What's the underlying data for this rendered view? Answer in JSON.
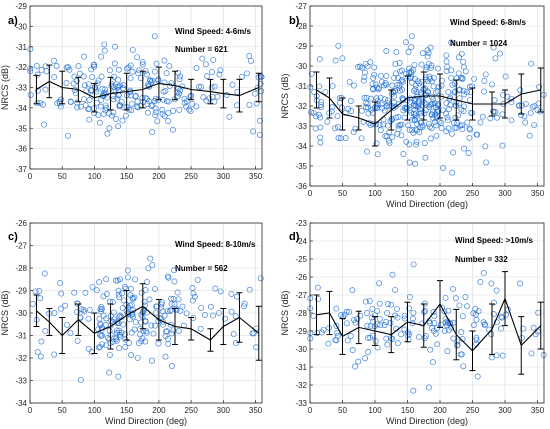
{
  "colors": {
    "marker": "#1f6fd6",
    "line": "#000000",
    "grid": "#dcdcdc",
    "frame": "#262626"
  },
  "chart_data": [
    {
      "type": "scatter",
      "panel_label": "a)",
      "annotation_speed": "Wind Speed: 4-6m/s",
      "annotation_number": "Number = 621",
      "xlabel": "",
      "ylabel": "NRCS (dB)",
      "xlim": [
        0,
        360
      ],
      "ylim": [
        -37,
        -29
      ],
      "xticks": [
        "0",
        "50",
        "100",
        "150",
        "200",
        "250",
        "300",
        "350"
      ],
      "yticks": [
        "-37",
        "-36",
        "-35",
        "-34",
        "-33",
        "-32",
        "-31",
        "-30",
        "-29"
      ],
      "grid": true,
      "mean_line": {
        "x": [
          10,
          30,
          50,
          75,
          100,
          125,
          150,
          175,
          200,
          225,
          250,
          280,
          300,
          325,
          355
        ],
        "y": [
          -33.1,
          -32.7,
          -33.0,
          -33.1,
          -33.5,
          -33.3,
          -33.2,
          -33.1,
          -32.8,
          -32.9,
          -33.1,
          -33.2,
          -33.3,
          -33.4,
          -33.0
        ],
        "err": [
          0.7,
          0.8,
          0.8,
          0.6,
          0.7,
          0.8,
          0.9,
          0.9,
          0.8,
          0.7,
          0.5,
          0.6,
          0.7,
          0.8,
          0.7
        ]
      },
      "scatter": {
        "center": 155,
        "spread": 70,
        "mean": -33.1,
        "sd": 0.9,
        "n": 260,
        "seed": 11
      }
    },
    {
      "type": "scatter",
      "panel_label": "b)",
      "annotation_speed": "Wind Speed: 6-8m/s",
      "annotation_number": "Number = 1024",
      "xlabel": "Wind Direction (deg)",
      "ylabel": "NRCS (dB)",
      "xlim": [
        0,
        360
      ],
      "ylim": [
        -36,
        -27
      ],
      "xticks": [
        "0",
        "50",
        "100",
        "150",
        "200",
        "250",
        "300",
        "350"
      ],
      "yticks": [
        "-36",
        "-35",
        "-34",
        "-33",
        "-32",
        "-31",
        "-30",
        "-29",
        "-28",
        "-27"
      ],
      "grid": true,
      "mean_line": {
        "x": [
          10,
          30,
          50,
          75,
          100,
          125,
          150,
          175,
          200,
          225,
          250,
          280,
          300,
          325,
          355
        ],
        "y": [
          -31.2,
          -31.6,
          -32.4,
          -32.6,
          -32.9,
          -32.2,
          -31.6,
          -31.5,
          -31.5,
          -31.7,
          -31.9,
          -31.9,
          -31.9,
          -31.4,
          -31.2
        ],
        "err": [
          0.9,
          1.0,
          0.8,
          0.6,
          1.1,
          1.0,
          1.1,
          1.2,
          1.1,
          1.0,
          0.8,
          0.6,
          0.7,
          1.0,
          1.1
        ]
      },
      "scatter": {
        "center": 165,
        "spread": 55,
        "mean": -31.8,
        "sd": 1.1,
        "n": 430,
        "seed": 22
      }
    },
    {
      "type": "scatter",
      "panel_label": "c)",
      "annotation_speed": "Wind Speed: 8-10m/s",
      "annotation_number": "Number = 562",
      "xlabel": "Wind Direction (deg)",
      "ylabel": "NRCS (dB)",
      "xlim": [
        0,
        360
      ],
      "ylim": [
        -34,
        -26
      ],
      "xticks": [
        "0",
        "50",
        "100",
        "150",
        "200",
        "250",
        "300",
        "350"
      ],
      "yticks": [
        "-34",
        "-33",
        "-32",
        "-31",
        "-30",
        "-29",
        "-28",
        "-27",
        "-26"
      ],
      "grid": true,
      "mean_line": {
        "x": [
          10,
          30,
          50,
          75,
          100,
          125,
          150,
          175,
          200,
          225,
          250,
          280,
          300,
          325,
          355
        ],
        "y": [
          -29.9,
          -30.4,
          -31.0,
          -30.3,
          -30.9,
          -30.6,
          -30.1,
          -29.7,
          -30.3,
          -30.6,
          -30.7,
          -31.2,
          -30.6,
          -30.2,
          -30.9
        ],
        "err": [
          0.7,
          0.6,
          0.8,
          0.7,
          0.9,
          1.0,
          1.1,
          1.0,
          0.9,
          0.8,
          0.5,
          0.5,
          0.8,
          1.1,
          1.2
        ]
      },
      "scatter": {
        "center": 155,
        "spread": 45,
        "mean": -30.2,
        "sd": 0.9,
        "n": 240,
        "seed": 33
      }
    },
    {
      "type": "scatter",
      "panel_label": "d)",
      "annotation_speed": "Wind Speed: >10m/s",
      "annotation_number": "Number = 332",
      "xlabel": "Wind Direction (deg)",
      "ylabel": "NRCS (dB)",
      "xlim": [
        0,
        360
      ],
      "ylim": [
        -33,
        -23
      ],
      "xticks": [
        "0",
        "50",
        "100",
        "150",
        "200",
        "250",
        "300",
        "350"
      ],
      "yticks": [
        "-33",
        "-32",
        "-31",
        "-30",
        "-29",
        "-28",
        "-27",
        "-26",
        "-25",
        "-24",
        "-23"
      ],
      "grid": true,
      "mean_line": {
        "x": [
          10,
          30,
          50,
          75,
          100,
          125,
          150,
          175,
          200,
          225,
          250,
          280,
          300,
          325,
          355
        ],
        "y": [
          -28.1,
          -28.0,
          -29.3,
          -28.8,
          -29.0,
          -29.2,
          -28.5,
          -28.7,
          -27.5,
          -29.2,
          -30.1,
          -28.9,
          -27.2,
          -29.8,
          -28.7
        ],
        "err": [
          1.1,
          1.2,
          1.0,
          0.9,
          0.8,
          1.0,
          1.1,
          1.2,
          1.3,
          1.4,
          1.1,
          1.4,
          1.5,
          1.6,
          1.3
        ]
      },
      "scatter": {
        "center": 170,
        "spread": 85,
        "mean": -28.7,
        "sd": 1.2,
        "n": 180,
        "seed": 44
      }
    }
  ]
}
